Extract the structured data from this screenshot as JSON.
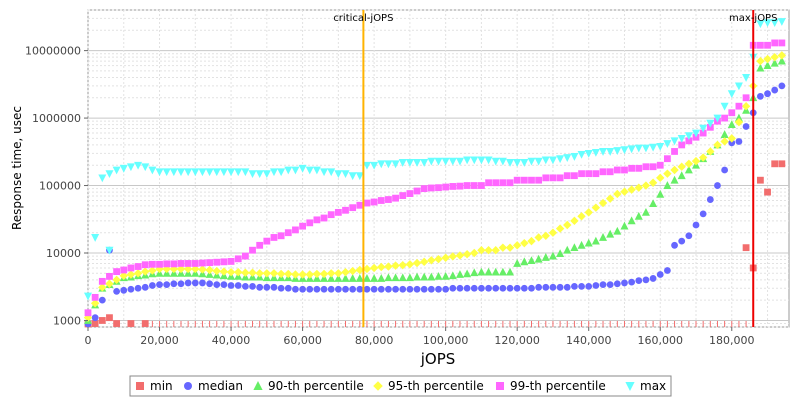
{
  "chart_data": {
    "type": "scatter",
    "title": "",
    "xlabel": "jOPS",
    "ylabel": "Response time, usec",
    "xlim": [
      0,
      196000
    ],
    "ylim": [
      800,
      40000000
    ],
    "yscale": "log",
    "x_ticks": [
      0,
      20000,
      40000,
      60000,
      80000,
      100000,
      120000,
      140000,
      160000,
      180000
    ],
    "x_tick_labels": [
      "0",
      "20,000",
      "40,000",
      "60,000",
      "80,000",
      "100,000",
      "120,000",
      "140,000",
      "160,000",
      "180,000"
    ],
    "y_ticks": [
      1000,
      10000,
      100000,
      1000000,
      10000000
    ],
    "y_tick_labels": [
      "1000",
      "10000",
      "100000",
      "1000000",
      "10000000"
    ],
    "grid": true,
    "legend_position": "bottom",
    "annotations": [
      {
        "label": "critical-jOPS",
        "x": 77000,
        "color": "#ffb300"
      },
      {
        "label": "max-jOPS",
        "x": 186000,
        "color": "#ee0000"
      }
    ],
    "series": [
      {
        "name": "min",
        "marker": "square",
        "color": "#f26d6d",
        "points": []
      },
      {
        "name": "median",
        "marker": "circle",
        "color": "#6666ff",
        "points": []
      },
      {
        "name": "90-th percentile",
        "marker": "triangle-up",
        "color": "#66ee66",
        "points": []
      },
      {
        "name": "95-th percentile",
        "marker": "diamond",
        "color": "#ffff44",
        "points": []
      },
      {
        "name": "99-th percentile",
        "marker": "square",
        "color": "#ff66ff",
        "points": []
      },
      {
        "name": "max",
        "marker": "triangle-down",
        "color": "#66ffff",
        "points": []
      }
    ]
  }
}
